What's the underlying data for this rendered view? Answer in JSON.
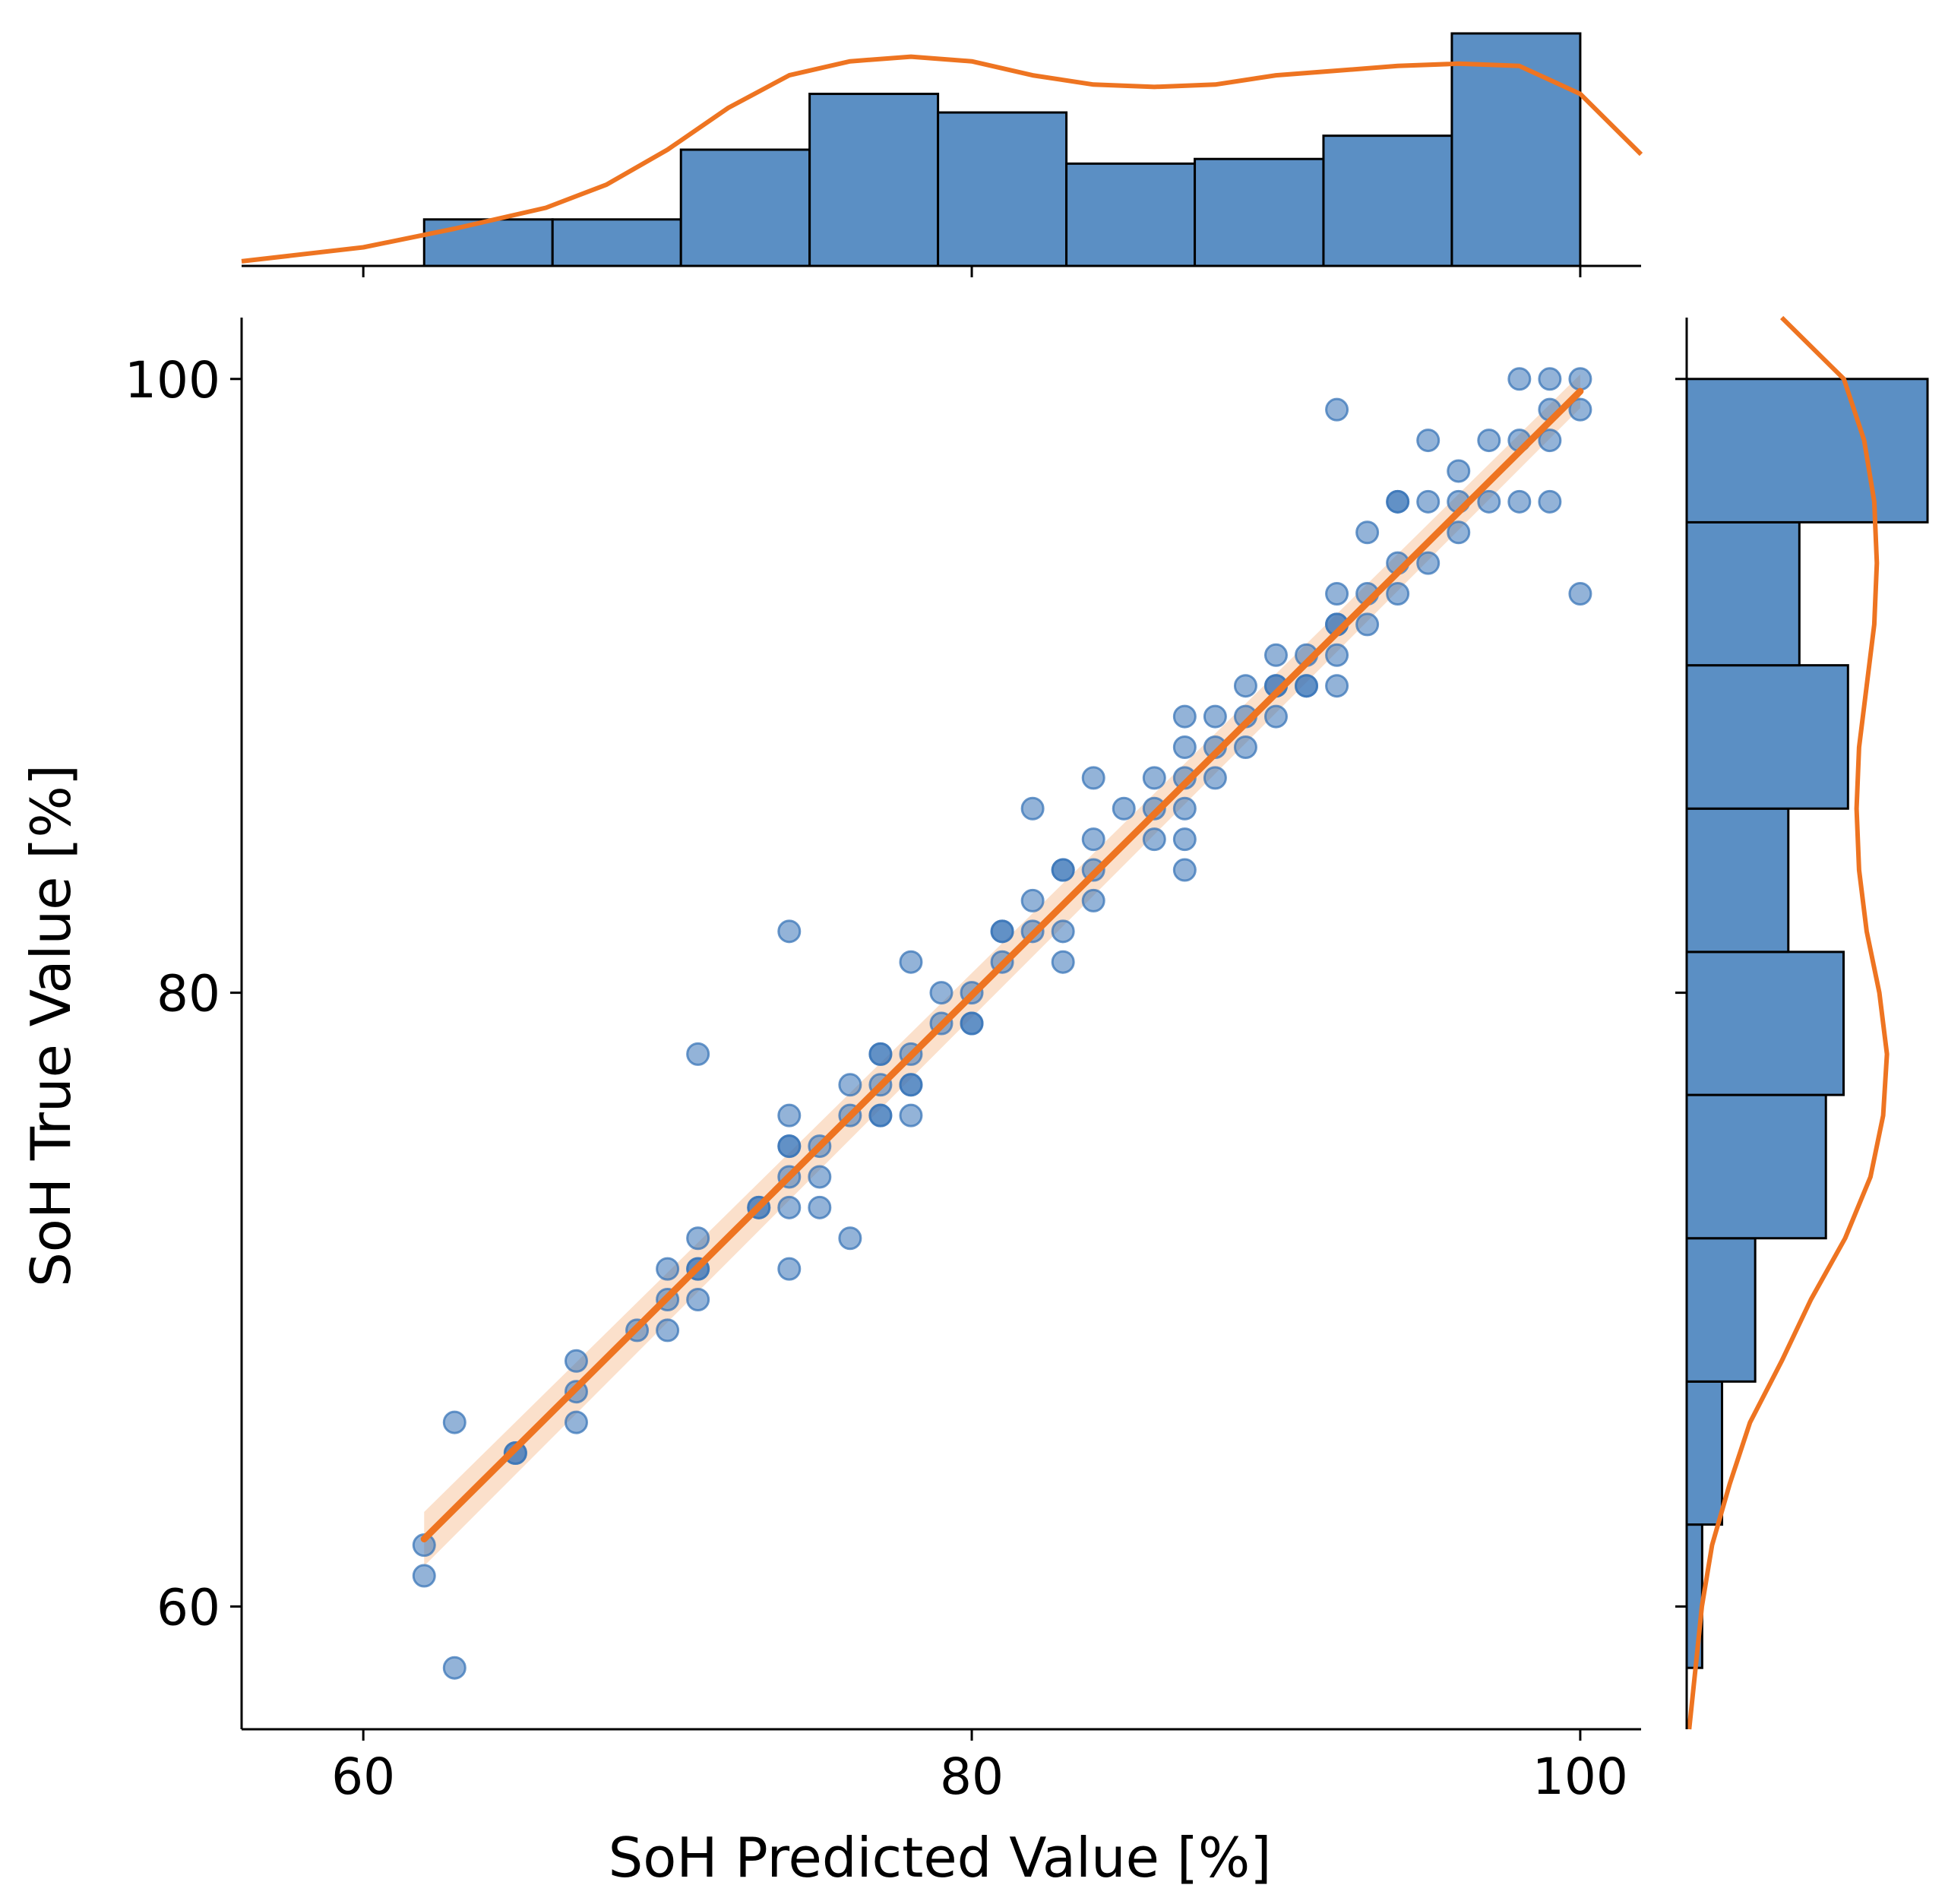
{
  "chart_data": {
    "type": "scatter",
    "subtype": "jointplot",
    "xlabel": "SoH Predicted Value [%]",
    "ylabel": "SoH True Value [%]",
    "xlim": [
      56,
      102
    ],
    "ylim": [
      56,
      102
    ],
    "xticks": [
      60,
      80,
      100
    ],
    "yticks": [
      60,
      80,
      100
    ],
    "grid": false,
    "colors": {
      "points": "#3a75b8",
      "bars": "#5b8fc4",
      "edge": "#000000",
      "fit": "#ee7421",
      "band": "#f7c7a0"
    },
    "regression": {
      "x": [
        62,
        100
      ],
      "y": [
        62.2,
        99.6
      ]
    },
    "points": [
      [
        62,
        62
      ],
      [
        62,
        61
      ],
      [
        63,
        58
      ],
      [
        63,
        66
      ],
      [
        65,
        65
      ],
      [
        65,
        65
      ],
      [
        67,
        68
      ],
      [
        67,
        67
      ],
      [
        67,
        66
      ],
      [
        69,
        69
      ],
      [
        70,
        71
      ],
      [
        70,
        70
      ],
      [
        70,
        69
      ],
      [
        71,
        72
      ],
      [
        71,
        71
      ],
      [
        71,
        71
      ],
      [
        71,
        70
      ],
      [
        71,
        78
      ],
      [
        73,
        73
      ],
      [
        73,
        73
      ],
      [
        74,
        76
      ],
      [
        74,
        75
      ],
      [
        74,
        75
      ],
      [
        74,
        74
      ],
      [
        74,
        73
      ],
      [
        74,
        71
      ],
      [
        74,
        82
      ],
      [
        75,
        75
      ],
      [
        75,
        74
      ],
      [
        75,
        73
      ],
      [
        76,
        76
      ],
      [
        76,
        77
      ],
      [
        76,
        72
      ],
      [
        77,
        76
      ],
      [
        77,
        76
      ],
      [
        77,
        77
      ],
      [
        77,
        78
      ],
      [
        77,
        78
      ],
      [
        78,
        78
      ],
      [
        78,
        77
      ],
      [
        78,
        77
      ],
      [
        78,
        76
      ],
      [
        78,
        81
      ],
      [
        79,
        79
      ],
      [
        79,
        80
      ],
      [
        80,
        80
      ],
      [
        80,
        79
      ],
      [
        80,
        79
      ],
      [
        81,
        81
      ],
      [
        81,
        82
      ],
      [
        81,
        82
      ],
      [
        82,
        82
      ],
      [
        82,
        83
      ],
      [
        82,
        86
      ],
      [
        83,
        84
      ],
      [
        83,
        84
      ],
      [
        83,
        82
      ],
      [
        83,
        81
      ],
      [
        84,
        84
      ],
      [
        84,
        85
      ],
      [
        84,
        83
      ],
      [
        84,
        87
      ],
      [
        85,
        86
      ],
      [
        86,
        86
      ],
      [
        86,
        87
      ],
      [
        86,
        85
      ],
      [
        87,
        88
      ],
      [
        87,
        87
      ],
      [
        87,
        86
      ],
      [
        87,
        85
      ],
      [
        87,
        84
      ],
      [
        87,
        89
      ],
      [
        88,
        88
      ],
      [
        88,
        89
      ],
      [
        88,
        87
      ],
      [
        89,
        89
      ],
      [
        89,
        90
      ],
      [
        89,
        88
      ],
      [
        90,
        90
      ],
      [
        90,
        90
      ],
      [
        90,
        91
      ],
      [
        90,
        89
      ],
      [
        91,
        90
      ],
      [
        91,
        90
      ],
      [
        91,
        91
      ],
      [
        92,
        92
      ],
      [
        92,
        92
      ],
      [
        92,
        93
      ],
      [
        92,
        91
      ],
      [
        92,
        90
      ],
      [
        92,
        99
      ],
      [
        93,
        92
      ],
      [
        93,
        93
      ],
      [
        93,
        95
      ],
      [
        94,
        94
      ],
      [
        94,
        93
      ],
      [
        94,
        96
      ],
      [
        94,
        96
      ],
      [
        95,
        94
      ],
      [
        95,
        96
      ],
      [
        95,
        98
      ],
      [
        96,
        96
      ],
      [
        96,
        95
      ],
      [
        96,
        97
      ],
      [
        97,
        96
      ],
      [
        97,
        98
      ],
      [
        98,
        98
      ],
      [
        98,
        96
      ],
      [
        98,
        100
      ],
      [
        99,
        99
      ],
      [
        99,
        98
      ],
      [
        99,
        96
      ],
      [
        99,
        100
      ],
      [
        100,
        100
      ],
      [
        100,
        99
      ],
      [
        100,
        93
      ]
    ],
    "x_hist": {
      "edges": [
        62,
        66.22,
        70.44,
        74.67,
        78.89,
        83.11,
        87.33,
        91.56,
        95.78,
        100
      ],
      "counts": [
        2,
        2,
        5,
        7.4,
        6.6,
        4.4,
        4.6,
        5.6,
        10
      ]
    },
    "y_hist": {
      "edges": [
        58,
        62.67,
        67.33,
        72,
        76.67,
        81.33,
        86,
        90.67,
        95.33,
        100
      ],
      "counts": [
        0.7,
        1.6,
        3.1,
        6.3,
        7.1,
        4.6,
        7.3,
        5.1,
        10.9
      ]
    },
    "x_kde": {
      "x": [
        56,
        60,
        63,
        66,
        68,
        70,
        72,
        74,
        76,
        78,
        80,
        82,
        84,
        86,
        88,
        90,
        92,
        94,
        96,
        98,
        100,
        102
      ],
      "density": [
        0.2,
        0.8,
        1.6,
        2.5,
        3.5,
        5,
        6.8,
        8.2,
        8.8,
        9,
        8.8,
        8.2,
        7.8,
        7.7,
        7.8,
        8.2,
        8.4,
        8.6,
        8.7,
        8.6,
        7.4,
        4.8
      ]
    },
    "y_kde": {
      "y": [
        56,
        58,
        60,
        62,
        64,
        66,
        68,
        70,
        72,
        74,
        76,
        78,
        80,
        82,
        84,
        86,
        88,
        90,
        92,
        94,
        96,
        98,
        100,
        102
      ],
      "density": [
        0.2,
        0.7,
        1.2,
        2,
        3.4,
        5,
        7.5,
        9.8,
        12.5,
        14.5,
        15.5,
        15.8,
        15.2,
        14.2,
        13.6,
        13.4,
        13.6,
        14.2,
        14.8,
        15,
        14.8,
        14,
        12.4,
        7.5
      ]
    }
  }
}
